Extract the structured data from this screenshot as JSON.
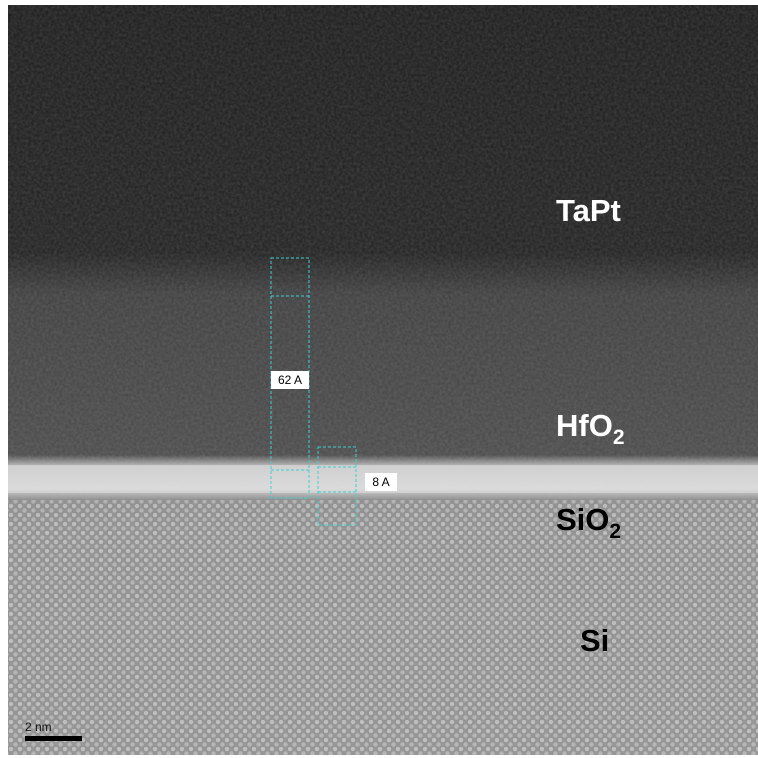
{
  "layers": {
    "tapt": "TaPt",
    "hfo2": {
      "base": "HfO",
      "sub": "2"
    },
    "sio2": {
      "base": "SiO",
      "sub": "2"
    },
    "si": "Si"
  },
  "measurements": {
    "hfo2_thickness": "62 A",
    "sio2_thickness": "8 A"
  },
  "scale_bar": "2 nm"
}
